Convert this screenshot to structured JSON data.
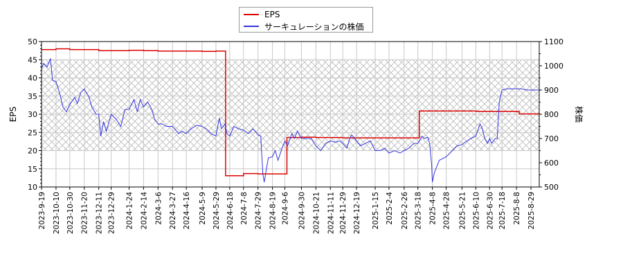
{
  "chart_data": {
    "type": "line",
    "title": "",
    "xlabel": "",
    "ylabel": "EPS",
    "ylabel_right": "株価",
    "ylim": [
      10,
      50
    ],
    "ylim_right": [
      500,
      1100
    ],
    "yticks": [
      10,
      15,
      20,
      25,
      30,
      35,
      40,
      45,
      50
    ],
    "yticks_right": [
      500,
      600,
      700,
      800,
      900,
      1000,
      1100
    ],
    "grid": true,
    "legend_position": "top-center",
    "shaded_band": {
      "eps_range": [
        20,
        45
      ],
      "pattern": "crosshatch"
    },
    "x_tick_labels": [
      "2023-9-19",
      "2023-10-10",
      "2023-10-30",
      "2023-11-20",
      "2023-12-11",
      "2023-12-29",
      "2024-1-24",
      "2024-2-14",
      "2024-3-6",
      "2024-3-27",
      "2024-4-16",
      "2024-5-9",
      "2024-5-29",
      "2024-6-18",
      "2024-7-8",
      "2024-7-29",
      "2024-8-19",
      "2024-9-6",
      "2024-9-30",
      "2024-10-21",
      "2024-11-11",
      "2024-11-29",
      "2024-12-19",
      "2025-1-15",
      "2025-2-4",
      "2025-2-26",
      "2025-3-18",
      "2025-4-8",
      "2025-4-28",
      "2025-5-21",
      "2025-6-10",
      "2025-6-30",
      "2025-7-18",
      "2025-8-8",
      "2025-8-29"
    ],
    "series": [
      {
        "name": "EPS",
        "color": "#dd0000",
        "axis": "left",
        "points": [
          [
            "2023-9-19",
            47.8
          ],
          [
            "2023-10-10",
            48.0
          ],
          [
            "2023-10-30",
            47.8
          ],
          [
            "2023-11-20",
            47.8
          ],
          [
            "2023-12-11",
            47.5
          ],
          [
            "2023-12-29",
            47.5
          ],
          [
            "2024-1-24",
            47.6
          ],
          [
            "2024-2-14",
            47.5
          ],
          [
            "2024-3-6",
            47.4
          ],
          [
            "2024-3-27",
            47.4
          ],
          [
            "2024-4-16",
            47.4
          ],
          [
            "2024-5-9",
            47.3
          ],
          [
            "2024-5-29",
            47.4
          ],
          [
            "2024-6-10",
            47.4
          ],
          [
            "2024-6-12",
            13.1
          ],
          [
            "2024-6-18",
            13.1
          ],
          [
            "2024-7-8",
            13.7
          ],
          [
            "2024-7-29",
            13.6
          ],
          [
            "2024-8-19",
            13.6
          ],
          [
            "2024-9-6",
            13.6
          ],
          [
            "2024-9-9",
            23.6
          ],
          [
            "2024-9-30",
            23.7
          ],
          [
            "2024-10-21",
            23.6
          ],
          [
            "2024-11-11",
            23.6
          ],
          [
            "2024-11-29",
            23.5
          ],
          [
            "2024-12-19",
            23.5
          ],
          [
            "2025-1-15",
            23.5
          ],
          [
            "2025-2-4",
            23.5
          ],
          [
            "2025-2-26",
            23.5
          ],
          [
            "2025-3-18",
            23.5
          ],
          [
            "2025-3-20",
            30.9
          ],
          [
            "2025-4-8",
            30.9
          ],
          [
            "2025-4-28",
            30.9
          ],
          [
            "2025-5-21",
            30.9
          ],
          [
            "2025-6-10",
            30.8
          ],
          [
            "2025-6-30",
            30.8
          ],
          [
            "2025-7-18",
            30.8
          ],
          [
            "2025-8-8",
            30.7
          ],
          [
            "2025-8-12",
            30.1
          ],
          [
            "2025-8-29",
            30.1
          ],
          [
            "2025-9-10",
            30.0
          ]
        ]
      },
      {
        "name": "サーキュレーションの株価",
        "color": "#3333dd",
        "axis": "right",
        "points": [
          [
            "2023-9-19",
            990
          ],
          [
            "2023-9-22",
            1010
          ],
          [
            "2023-9-27",
            995
          ],
          [
            "2023-10-2",
            1030
          ],
          [
            "2023-10-5",
            940
          ],
          [
            "2023-10-10",
            935
          ],
          [
            "2023-10-16",
            880
          ],
          [
            "2023-10-20",
            830
          ],
          [
            "2023-10-25",
            810
          ],
          [
            "2023-10-30",
            840
          ],
          [
            "2023-11-6",
            870
          ],
          [
            "2023-11-10",
            845
          ],
          [
            "2023-11-15",
            890
          ],
          [
            "2023-11-20",
            905
          ],
          [
            "2023-11-27",
            870
          ],
          [
            "2023-12-1",
            830
          ],
          [
            "2023-12-7",
            800
          ],
          [
            "2023-12-11",
            800
          ],
          [
            "2023-12-14",
            710
          ],
          [
            "2023-12-18",
            770
          ],
          [
            "2023-12-22",
            730
          ],
          [
            "2023-12-29",
            800
          ],
          [
            "2024-1-5",
            780
          ],
          [
            "2024-1-12",
            750
          ],
          [
            "2024-1-18",
            820
          ],
          [
            "2024-1-24",
            820
          ],
          [
            "2024-1-31",
            860
          ],
          [
            "2024-2-5",
            810
          ],
          [
            "2024-2-9",
            860
          ],
          [
            "2024-2-14",
            830
          ],
          [
            "2024-2-20",
            850
          ],
          [
            "2024-2-26",
            820
          ],
          [
            "2024-3-1",
            780
          ],
          [
            "2024-3-6",
            760
          ],
          [
            "2024-3-12",
            760
          ],
          [
            "2024-3-18",
            750
          ],
          [
            "2024-3-27",
            750
          ],
          [
            "2024-4-5",
            720
          ],
          [
            "2024-4-10",
            730
          ],
          [
            "2024-4-16",
            720
          ],
          [
            "2024-4-23",
            740
          ],
          [
            "2024-5-1",
            755
          ],
          [
            "2024-5-9",
            750
          ],
          [
            "2024-5-15",
            740
          ],
          [
            "2024-5-22",
            720
          ],
          [
            "2024-5-29",
            710
          ],
          [
            "2024-6-3",
            785
          ],
          [
            "2024-6-6",
            740
          ],
          [
            "2024-6-11",
            760
          ],
          [
            "2024-6-14",
            720
          ],
          [
            "2024-6-18",
            710
          ],
          [
            "2024-6-24",
            750
          ],
          [
            "2024-7-1",
            740
          ],
          [
            "2024-7-8",
            735
          ],
          [
            "2024-7-15",
            720
          ],
          [
            "2024-7-22",
            740
          ],
          [
            "2024-7-29",
            715
          ],
          [
            "2024-8-2",
            710
          ],
          [
            "2024-8-5",
            555
          ],
          [
            "2024-8-7",
            520
          ],
          [
            "2024-8-13",
            620
          ],
          [
            "2024-8-19",
            625
          ],
          [
            "2024-8-23",
            650
          ],
          [
            "2024-8-27",
            610
          ],
          [
            "2024-9-2",
            660
          ],
          [
            "2024-9-6",
            690
          ],
          [
            "2024-9-10",
            670
          ],
          [
            "2024-9-16",
            720
          ],
          [
            "2024-9-20",
            700
          ],
          [
            "2024-9-24",
            730
          ],
          [
            "2024-9-30",
            700
          ],
          [
            "2024-10-7",
            700
          ],
          [
            "2024-10-14",
            700
          ],
          [
            "2024-10-21",
            670
          ],
          [
            "2024-10-28",
            650
          ],
          [
            "2024-11-4",
            680
          ],
          [
            "2024-11-11",
            690
          ],
          [
            "2024-11-18",
            685
          ],
          [
            "2024-11-25",
            690
          ],
          [
            "2024-11-29",
            680
          ],
          [
            "2024-12-5",
            660
          ],
          [
            "2024-12-9",
            700
          ],
          [
            "2024-12-12",
            715
          ],
          [
            "2024-12-19",
            690
          ],
          [
            "2024-12-25",
            670
          ],
          [
            "2025-1-8",
            690
          ],
          [
            "2025-1-15",
            650
          ],
          [
            "2025-1-22",
            650
          ],
          [
            "2025-1-29",
            660
          ],
          [
            "2025-2-4",
            640
          ],
          [
            "2025-2-12",
            650
          ],
          [
            "2025-2-20",
            640
          ],
          [
            "2025-2-26",
            650
          ],
          [
            "2025-3-5",
            660
          ],
          [
            "2025-3-12",
            680
          ],
          [
            "2025-3-18",
            680
          ],
          [
            "2025-3-24",
            710
          ],
          [
            "2025-3-27",
            700
          ],
          [
            "2025-4-1",
            705
          ],
          [
            "2025-4-4",
            680
          ],
          [
            "2025-4-7",
            590
          ],
          [
            "2025-4-8",
            520
          ],
          [
            "2025-4-11",
            560
          ],
          [
            "2025-4-18",
            610
          ],
          [
            "2025-4-28",
            625
          ],
          [
            "2025-5-7",
            650
          ],
          [
            "2025-5-14",
            670
          ],
          [
            "2025-5-21",
            675
          ],
          [
            "2025-5-28",
            690
          ],
          [
            "2025-6-3",
            700
          ],
          [
            "2025-6-10",
            710
          ],
          [
            "2025-6-16",
            760
          ],
          [
            "2025-6-19",
            745
          ],
          [
            "2025-6-23",
            700
          ],
          [
            "2025-6-27",
            680
          ],
          [
            "2025-6-30",
            700
          ],
          [
            "2025-7-3",
            680
          ],
          [
            "2025-7-8",
            700
          ],
          [
            "2025-7-11",
            700
          ],
          [
            "2025-7-14",
            850
          ],
          [
            "2025-7-18",
            900
          ],
          [
            "2025-7-25",
            905
          ],
          [
            "2025-8-8",
            905
          ],
          [
            "2025-8-15",
            905
          ],
          [
            "2025-8-22",
            900
          ],
          [
            "2025-8-29",
            900
          ],
          [
            "2025-9-10",
            900
          ]
        ]
      }
    ]
  },
  "legend": {
    "items": [
      {
        "label": "EPS",
        "color": "#dd0000"
      },
      {
        "label": "サーキュレーションの株価",
        "color": "#3333dd"
      }
    ]
  },
  "axes": {
    "left_title": "EPS",
    "right_title": "株価"
  }
}
